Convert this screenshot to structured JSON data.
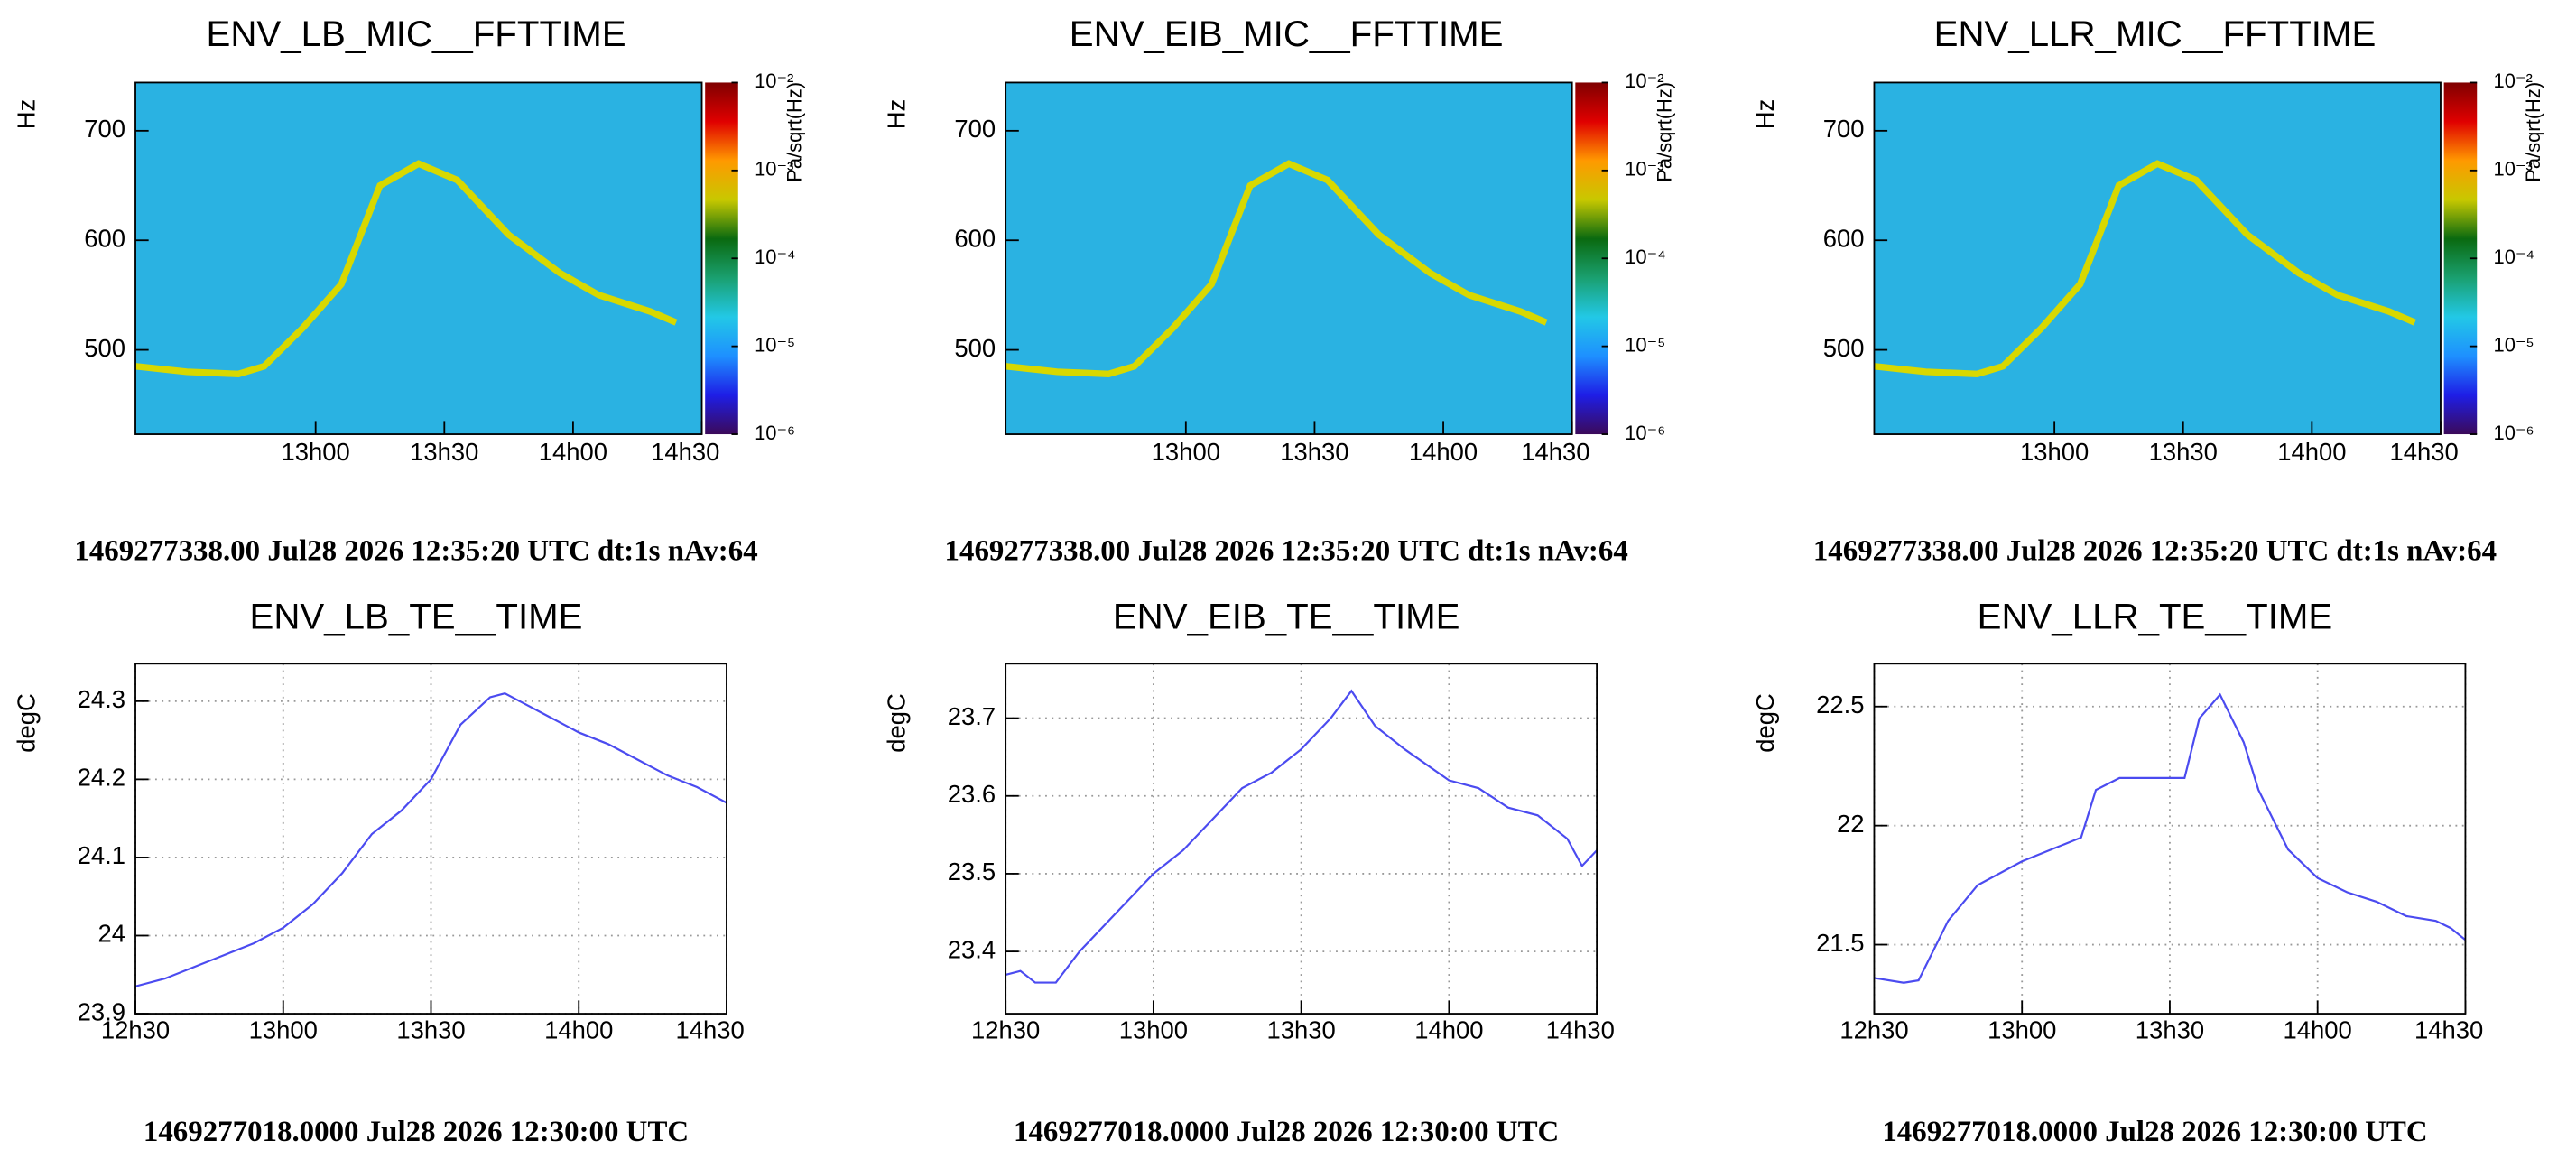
{
  "chart_data": [
    {
      "type": "spectrogram",
      "title": "ENV_LB_MIC__FFTTIME",
      "footer": "1469277338.00 Jul28 2026 12:35:20 UTC dt:1s nAv:64",
      "y_label": "Hz",
      "z_label": "Pa/sqrt(Hz)",
      "xlim": [
        12.3,
        14.5
      ],
      "xticks": [
        {
          "value": 13,
          "label": "13h00"
        },
        {
          "value": 13.5,
          "label": "13h30"
        },
        {
          "value": 14,
          "label": "14h00"
        },
        {
          "value": 14.5,
          "label": "14h30"
        }
      ],
      "ylim": [
        423,
        744
      ],
      "yticks": [
        500,
        600,
        700
      ],
      "zlim": [
        1e-06,
        0.01
      ],
      "zlog": true,
      "zticks": [
        {
          "value": 0.01,
          "label": "10⁻²"
        },
        {
          "value": 0.001,
          "label": "10⁻³"
        },
        {
          "value": 0.0001,
          "label": "10⁻⁴"
        },
        {
          "value": 1e-05,
          "label": "10⁻⁵"
        },
        {
          "value": 1e-06,
          "label": "10⁻⁶"
        }
      ],
      "colormap": [
        "#3b0a5a",
        "#1e1ee6",
        "#1e90ff",
        "#22c8e6",
        "#1aa070",
        "#0a6a10",
        "#c8c800",
        "#ff9900",
        "#e00000",
        "#800000"
      ],
      "ridge": {
        "color": "#d8d800",
        "x": [
          12.3,
          12.5,
          12.7,
          12.8,
          12.95,
          13.1,
          13.25,
          13.4,
          13.55,
          13.75,
          13.95,
          14.1,
          14.3,
          14.4
        ],
        "values": [
          485,
          480,
          478,
          485,
          520,
          560,
          650,
          670,
          655,
          605,
          570,
          550,
          535,
          525
        ]
      }
    },
    {
      "type": "spectrogram",
      "title": "ENV_EIB_MIC__FFTTIME",
      "footer": "1469277338.00 Jul28 2026 12:35:20 UTC dt:1s nAv:64",
      "y_label": "Hz",
      "z_label": "Pa/sqrt(Hz)",
      "xlim": [
        12.3,
        14.5
      ],
      "xticks": [
        {
          "value": 13,
          "label": "13h00"
        },
        {
          "value": 13.5,
          "label": "13h30"
        },
        {
          "value": 14,
          "label": "14h00"
        },
        {
          "value": 14.5,
          "label": "14h30"
        }
      ],
      "ylim": [
        423,
        744
      ],
      "yticks": [
        500,
        600,
        700
      ],
      "zlim": [
        1e-06,
        0.01
      ],
      "zlog": true,
      "zticks": [
        {
          "value": 0.01,
          "label": "10⁻²"
        },
        {
          "value": 0.001,
          "label": "10⁻³"
        },
        {
          "value": 0.0001,
          "label": "10⁻⁴"
        },
        {
          "value": 1e-05,
          "label": "10⁻⁵"
        },
        {
          "value": 1e-06,
          "label": "10⁻⁶"
        }
      ],
      "colormap": [
        "#3b0a5a",
        "#1e1ee6",
        "#1e90ff",
        "#22c8e6",
        "#1aa070",
        "#0a6a10",
        "#c8c800",
        "#ff9900",
        "#e00000",
        "#800000"
      ],
      "ridge": {
        "color": "#d8d800",
        "x": [
          12.3,
          12.5,
          12.7,
          12.8,
          12.95,
          13.1,
          13.25,
          13.4,
          13.55,
          13.75,
          13.95,
          14.1,
          14.3,
          14.4
        ],
        "values": [
          485,
          480,
          478,
          485,
          520,
          560,
          650,
          670,
          655,
          605,
          570,
          550,
          535,
          525
        ]
      }
    },
    {
      "type": "spectrogram",
      "title": "ENV_LLR_MIC__FFTTIME",
      "footer": "1469277338.00 Jul28 2026 12:35:20 UTC dt:1s nAv:64",
      "y_label": "Hz",
      "z_label": "Pa/sqrt(Hz)",
      "xlim": [
        12.3,
        14.5
      ],
      "xticks": [
        {
          "value": 13,
          "label": "13h00"
        },
        {
          "value": 13.5,
          "label": "13h30"
        },
        {
          "value": 14,
          "label": "14h00"
        },
        {
          "value": 14.5,
          "label": "14h30"
        }
      ],
      "ylim": [
        423,
        744
      ],
      "yticks": [
        500,
        600,
        700
      ],
      "zlim": [
        1e-06,
        0.01
      ],
      "zlog": true,
      "zticks": [
        {
          "value": 0.01,
          "label": "10⁻²"
        },
        {
          "value": 0.001,
          "label": "10⁻³"
        },
        {
          "value": 0.0001,
          "label": "10⁻⁴"
        },
        {
          "value": 1e-05,
          "label": "10⁻⁵"
        },
        {
          "value": 1e-06,
          "label": "10⁻⁶"
        }
      ],
      "colormap": [
        "#3b0a5a",
        "#1e1ee6",
        "#1e90ff",
        "#22c8e6",
        "#1aa070",
        "#0a6a10",
        "#c8c800",
        "#ff9900",
        "#e00000",
        "#800000"
      ],
      "ridge": {
        "color": "#d8d800",
        "x": [
          12.3,
          12.5,
          12.7,
          12.8,
          12.95,
          13.1,
          13.25,
          13.4,
          13.55,
          13.75,
          13.95,
          14.1,
          14.3,
          14.4
        ],
        "values": [
          485,
          480,
          478,
          485,
          520,
          560,
          650,
          670,
          655,
          605,
          570,
          550,
          535,
          525
        ]
      }
    },
    {
      "type": "line",
      "title": "ENV_LB_TE__TIME",
      "footer": "1469277018.0000 Jul28 2026 12:30:00 UTC",
      "y_label": "degC",
      "color": "#4b4bf0",
      "grid": true,
      "xlim": [
        12.5,
        14.5
      ],
      "xticks": [
        {
          "value": 12.5,
          "label": "12h30"
        },
        {
          "value": 13,
          "label": "13h00"
        },
        {
          "value": 13.5,
          "label": "13h30"
        },
        {
          "value": 14,
          "label": "14h00"
        },
        {
          "value": 14.5,
          "label": "14h30"
        }
      ],
      "ylim": [
        23.9,
        24.348
      ],
      "yticks": [
        23.9,
        24,
        24.1,
        24.2,
        24.3
      ],
      "x": [
        12.5,
        12.6,
        12.7,
        12.8,
        12.9,
        13.0,
        13.1,
        13.2,
        13.3,
        13.4,
        13.5,
        13.6,
        13.7,
        13.75,
        13.8,
        13.9,
        14.0,
        14.1,
        14.2,
        14.3,
        14.4,
        14.5
      ],
      "values": [
        23.935,
        23.945,
        23.96,
        23.975,
        23.99,
        24.01,
        24.04,
        24.08,
        24.13,
        24.16,
        24.2,
        24.27,
        24.305,
        24.31,
        24.3,
        24.28,
        24.26,
        24.245,
        24.225,
        24.205,
        24.19,
        24.17
      ]
    },
    {
      "type": "line",
      "title": "ENV_EIB_TE__TIME",
      "footer": "1469277018.0000 Jul28 2026 12:30:00 UTC",
      "y_label": "degC",
      "color": "#4b4bf0",
      "grid": true,
      "xlim": [
        12.5,
        14.5
      ],
      "xticks": [
        {
          "value": 12.5,
          "label": "12h30"
        },
        {
          "value": 13,
          "label": "13h00"
        },
        {
          "value": 13.5,
          "label": "13h30"
        },
        {
          "value": 14,
          "label": "14h00"
        },
        {
          "value": 14.5,
          "label": "14h30"
        }
      ],
      "ylim": [
        23.32,
        23.77
      ],
      "yticks": [
        23.4,
        23.5,
        23.6,
        23.7
      ],
      "x": [
        12.5,
        12.55,
        12.6,
        12.67,
        12.75,
        12.85,
        13.0,
        13.1,
        13.2,
        13.3,
        13.4,
        13.5,
        13.6,
        13.67,
        13.75,
        13.85,
        14.0,
        14.1,
        14.2,
        14.3,
        14.4,
        14.45,
        14.5
      ],
      "values": [
        23.37,
        23.375,
        23.36,
        23.36,
        23.4,
        23.44,
        23.5,
        23.53,
        23.57,
        23.61,
        23.63,
        23.66,
        23.7,
        23.735,
        23.69,
        23.66,
        23.62,
        23.61,
        23.585,
        23.575,
        23.545,
        23.51,
        23.53
      ]
    },
    {
      "type": "line",
      "title": "ENV_LLR_TE__TIME",
      "footer": "1469277018.0000 Jul28 2026 12:30:00 UTC",
      "y_label": "degC",
      "color": "#4b4bf0",
      "grid": true,
      "xlim": [
        12.5,
        14.5
      ],
      "xticks": [
        {
          "value": 12.5,
          "label": "12h30"
        },
        {
          "value": 13,
          "label": "13h00"
        },
        {
          "value": 13.5,
          "label": "13h30"
        },
        {
          "value": 14,
          "label": "14h00"
        },
        {
          "value": 14.5,
          "label": "14h30"
        }
      ],
      "ylim": [
        21.21,
        22.68
      ],
      "yticks": [
        21.5,
        22,
        22.5
      ],
      "x": [
        12.5,
        12.6,
        12.65,
        12.75,
        12.85,
        13.0,
        13.1,
        13.2,
        13.25,
        13.33,
        13.5,
        13.55,
        13.6,
        13.67,
        13.75,
        13.8,
        13.9,
        14.0,
        14.1,
        14.2,
        14.3,
        14.4,
        14.45,
        14.5
      ],
      "values": [
        21.36,
        21.34,
        21.35,
        21.6,
        21.75,
        21.85,
        21.9,
        21.95,
        22.15,
        22.2,
        22.2,
        22.2,
        22.45,
        22.55,
        22.35,
        22.15,
        21.9,
        21.78,
        21.72,
        21.68,
        21.62,
        21.6,
        21.57,
        21.52
      ]
    }
  ]
}
